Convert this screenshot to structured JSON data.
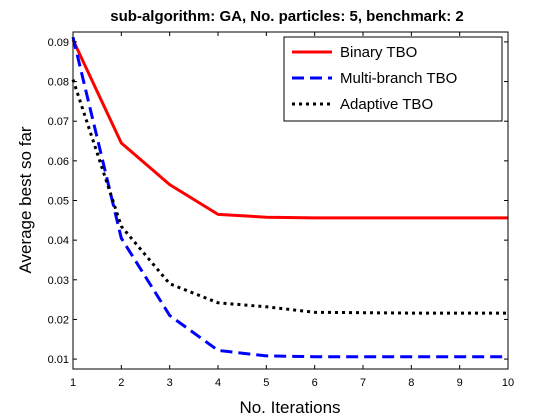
{
  "chart_data": {
    "type": "line",
    "title": "sub-algorithm: GA, No. particles: 5, benchmark: 2",
    "xlabel": "No. Iterations",
    "ylabel": "Average best so far",
    "xlim": [
      1,
      10
    ],
    "ylim": [
      0.0075,
      0.0925
    ],
    "xticks": [
      1,
      2,
      3,
      4,
      5,
      6,
      7,
      8,
      9,
      10
    ],
    "yticks": [
      0.01,
      0.02,
      0.03,
      0.04,
      0.05,
      0.06,
      0.07,
      0.08,
      0.09
    ],
    "grid": false,
    "legend_position": "top-right",
    "x": [
      1,
      2,
      3,
      4,
      5,
      6,
      7,
      8,
      9,
      10
    ],
    "series": [
      {
        "name": "Binary TBO",
        "color": "#ff0000",
        "style": "solid",
        "values": [
          0.0905,
          0.0645,
          0.054,
          0.0465,
          0.0458,
          0.0456,
          0.0456,
          0.0456,
          0.0456,
          0.0456
        ]
      },
      {
        "name": "Multi-branch TBO",
        "color": "#0000ff",
        "style": "dashed",
        "values": [
          0.0912,
          0.0405,
          0.021,
          0.0122,
          0.0108,
          0.0106,
          0.0106,
          0.0106,
          0.0106,
          0.0106
        ]
      },
      {
        "name": "Adaptive TBO",
        "color": "#000000",
        "style": "dotted",
        "values": [
          0.0805,
          0.0435,
          0.029,
          0.0242,
          0.0232,
          0.0218,
          0.0217,
          0.0216,
          0.0216,
          0.0216
        ]
      }
    ]
  }
}
